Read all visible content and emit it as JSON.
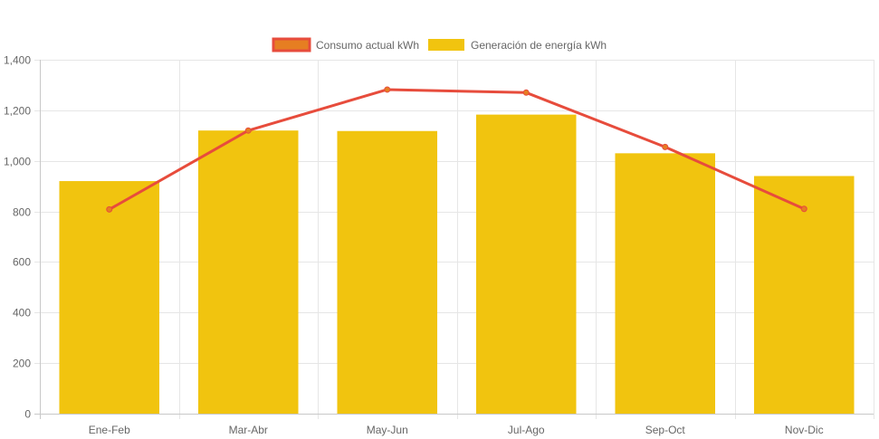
{
  "chart_data": {
    "type": "bar",
    "categories": [
      "Ene-Feb",
      "Mar-Abr",
      "May-Jun",
      "Jul-Ago",
      "Sep-Oct",
      "Nov-Dic"
    ],
    "series": [
      {
        "name": "Generación de energía kWh",
        "type": "bar",
        "values": [
          920,
          1120,
          1118,
          1183,
          1030,
          940
        ],
        "color": "#f1c40f"
      },
      {
        "name": "Consumo actual kWh",
        "type": "line",
        "values": [
          808,
          1120,
          1282,
          1270,
          1055,
          810
        ],
        "color": "#e74c3c",
        "point_fill": "#e67e22"
      }
    ],
    "ylim": [
      0,
      1400
    ],
    "yticks": [
      0,
      200,
      400,
      600,
      800,
      "1,000",
      "1,200",
      "1,400"
    ],
    "ytick_values": [
      0,
      200,
      400,
      600,
      800,
      1000,
      1200,
      1400
    ],
    "grid": true,
    "legend_position": "top-center",
    "title": "",
    "xlabel": "",
    "ylabel": ""
  }
}
